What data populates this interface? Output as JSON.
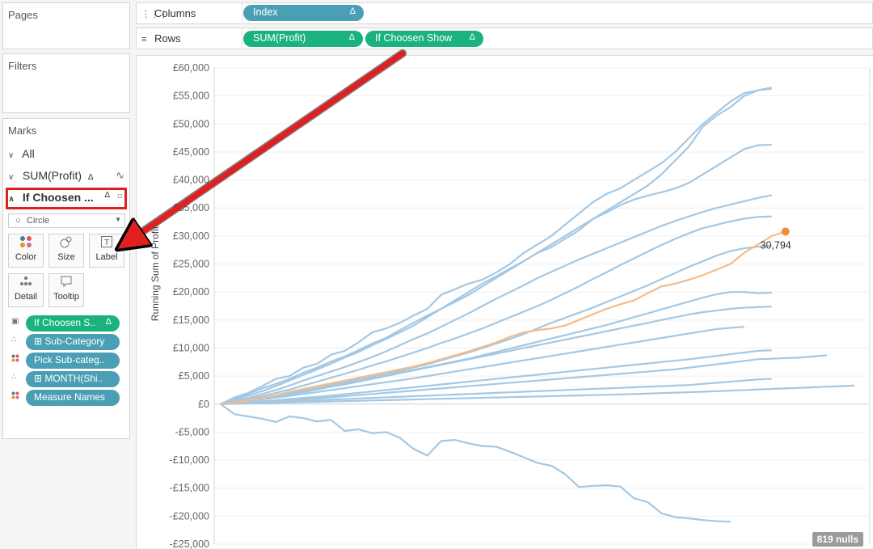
{
  "panels": {
    "pages": "Pages",
    "filters": "Filters",
    "marks": "Marks"
  },
  "shelves": {
    "columns_label": "Columns",
    "rows_label": "Rows",
    "columns_pills": [
      {
        "label": "Index",
        "color": "#4a9fb5"
      }
    ],
    "rows_pills": [
      {
        "label": "SUM(Profit)",
        "color": "#1ab37f"
      },
      {
        "label": "If Choosen Show",
        "color": "#1ab37f"
      }
    ]
  },
  "marks": {
    "all": "All",
    "sum_profit": "SUM(Profit)",
    "if_choosen": "If Choosen ...",
    "mark_type": "Circle",
    "buttons": {
      "color": "Color",
      "size": "Size",
      "label": "Label",
      "detail": "Detail",
      "tooltip": "Tooltip"
    },
    "fields": [
      {
        "label": "If Choosen S..",
        "icon": "label-icon",
        "color": "#1ab37f"
      },
      {
        "label": "⊞ Sub-Category",
        "icon": "detail-icon",
        "color": "#4a9fb5"
      },
      {
        "label": "Pick Sub-categ..",
        "icon": "color-icon",
        "color": "#4a9fb5"
      },
      {
        "label": "⊞ MONTH(Shi..",
        "icon": "detail-icon",
        "color": "#4a9fb5"
      },
      {
        "label": "Measure Names",
        "icon": "color-icon",
        "color": "#4a9fb5"
      }
    ]
  },
  "nulls_badge": "819 nulls",
  "chart_data": {
    "type": "line",
    "ylabel": "Running Sum of Profit",
    "xlabel": "",
    "ylim": [
      -25000,
      60000
    ],
    "xlim": [
      1,
      48
    ],
    "y_ticks": [
      {
        "value": 60000,
        "label": "£60,000"
      },
      {
        "value": 55000,
        "label": "£55,000"
      },
      {
        "value": 50000,
        "label": "£50,000"
      },
      {
        "value": 45000,
        "label": "£45,000"
      },
      {
        "value": 40000,
        "label": "£40,000"
      },
      {
        "value": 35000,
        "label": "£35,000"
      },
      {
        "value": 30000,
        "label": "£30,000"
      },
      {
        "value": 25000,
        "label": "£25,000"
      },
      {
        "value": 20000,
        "label": "£20,000"
      },
      {
        "value": 15000,
        "label": "£15,000"
      },
      {
        "value": 10000,
        "label": "£10,000"
      },
      {
        "value": 5000,
        "label": "£5,000"
      },
      {
        "value": 0,
        "label": "£0"
      },
      {
        "value": -5000,
        "label": "-£5,000"
      },
      {
        "value": -10000,
        "label": "-£10,000"
      },
      {
        "value": -15000,
        "label": "-£15,000"
      },
      {
        "value": -20000,
        "label": "-£20,000"
      },
      {
        "value": -25000,
        "label": "-£25,000"
      }
    ],
    "grid": true,
    "colors": {
      "series": "#a4c8e4",
      "highlight": "#f6bb87",
      "highlight_dot": "#ef8f3a"
    },
    "highlight_label": "30,794",
    "series": [
      {
        "values": [
          0,
          1200,
          2000,
          3200,
          4500,
          5000,
          6500,
          7200,
          8800,
          9500,
          11000,
          12800,
          13500,
          14500,
          15800,
          17000,
          19500,
          20500,
          21500,
          22200,
          23500,
          25000,
          27000,
          28500,
          30000,
          32000,
          34000,
          36000,
          37500,
          38500,
          40000,
          41500,
          43000,
          45000,
          47500,
          50000,
          52000,
          54000,
          55500,
          56000,
          56500
        ]
      },
      {
        "values": [
          0,
          900,
          1800,
          2800,
          3600,
          4500,
          5600,
          6500,
          7600,
          8500,
          9600,
          10800,
          11800,
          13200,
          14500,
          15800,
          17000,
          18200,
          19500,
          21000,
          22500,
          24000,
          25500,
          27000,
          28000,
          29500,
          31000,
          33000,
          34500,
          36000,
          37500,
          39000,
          41000,
          43500,
          46000,
          49500,
          51500,
          53000,
          55000,
          56000,
          56300
        ]
      },
      {
        "values": [
          0,
          700,
          1500,
          2300,
          3200,
          4200,
          5200,
          6200,
          7200,
          8300,
          9300,
          10500,
          11600,
          12800,
          14000,
          15500,
          17000,
          18500,
          20000,
          21500,
          22800,
          24200,
          25500,
          27000,
          28500,
          30000,
          31500,
          33000,
          34200,
          35500,
          36500,
          37200,
          37800,
          38500,
          39500,
          41000,
          42500,
          44000,
          45500,
          46200,
          46300
        ]
      },
      {
        "values": [
          0,
          500,
          1100,
          1800,
          2500,
          3300,
          4200,
          5000,
          5800,
          6600,
          7500,
          8400,
          9400,
          10500,
          11600,
          12600,
          13800,
          15000,
          16200,
          17500,
          18800,
          20000,
          21200,
          22500,
          23600,
          24700,
          25800,
          26800,
          27800,
          28800,
          29800,
          30800,
          31800,
          32700,
          33500,
          34300,
          35000,
          35600,
          36200,
          36800,
          37300
        ]
      },
      {
        "values": [
          0,
          400,
          900,
          1400,
          2000,
          2600,
          3300,
          4000,
          4700,
          5400,
          6100,
          6900,
          7600,
          8400,
          9200,
          10000,
          10900,
          11700,
          12600,
          13500,
          14500,
          15500,
          16500,
          17500,
          18600,
          19800,
          21000,
          22300,
          23500,
          24800,
          26000,
          27200,
          28400,
          29500,
          30500,
          31400,
          32000,
          32600,
          33100,
          33400,
          33500
        ]
      },
      {
        "values": [
          0,
          300,
          700,
          1100,
          1500,
          1900,
          2400,
          2900,
          3400,
          3900,
          4400,
          4900,
          5400,
          5900,
          6500,
          7100,
          7800,
          8500,
          9200,
          10000,
          10800,
          11600,
          12500,
          13500,
          14500,
          15400,
          16300,
          17200,
          18200,
          19200,
          20200,
          21200,
          22300,
          23400,
          24500,
          25500,
          26500,
          27300,
          27800,
          28100,
          28300
        ]
      },
      {
        "values": [
          0,
          200,
          500,
          900,
          1300,
          1700,
          2100,
          2600,
          3100,
          3600,
          4100,
          4600,
          5100,
          5600,
          6100,
          6600,
          7100,
          7600,
          8100,
          8700,
          9300,
          9900,
          10500,
          11100,
          11700,
          12300,
          12900,
          13500,
          14100,
          14800,
          15500,
          16200,
          16900,
          17600,
          18300,
          19000,
          19600,
          20000,
          20000,
          19800,
          19900
        ]
      },
      {
        "values": [
          0,
          300,
          700,
          1100,
          1500,
          1900,
          2300,
          2700,
          3100,
          3500,
          4000,
          4500,
          5000,
          5500,
          6000,
          6500,
          7000,
          7500,
          8000,
          8500,
          9000,
          9500,
          10000,
          10500,
          11000,
          11500,
          12000,
          12500,
          13000,
          13500,
          14000,
          14500,
          15000,
          15500,
          16000,
          16400,
          16700,
          17000,
          17200,
          17300,
          17400
        ]
      },
      {
        "values": [
          0,
          250,
          550,
          850,
          1150,
          1450,
          1800,
          2150,
          2500,
          2850,
          3200,
          3550,
          3900,
          4250,
          4600,
          5000,
          5400,
          5800,
          6200,
          6600,
          7000,
          7400,
          7800,
          8200,
          8600,
          9000,
          9400,
          9800,
          10200,
          10600,
          11000,
          11400,
          11800,
          12200,
          12600,
          13000,
          13400,
          13600,
          13800
        ]
      },
      {
        "values": [
          0,
          150,
          300,
          500,
          700,
          900,
          1100,
          1300,
          1500,
          1750,
          2000,
          2250,
          2500,
          2750,
          3000,
          3250,
          3500,
          3750,
          4000,
          4250,
          4500,
          4750,
          5000,
          5250,
          5500,
          5750,
          6000,
          6250,
          6500,
          6750,
          7000,
          7250,
          7500,
          7750,
          8000,
          8300,
          8600,
          8900,
          9200,
          9500,
          9600
        ]
      },
      {
        "values": [
          0,
          120,
          250,
          400,
          550,
          700,
          850,
          1000,
          1200,
          1400,
          1600,
          1800,
          2000,
          2200,
          2400,
          2600,
          2800,
          3000,
          3200,
          3400,
          3600,
          3800,
          4000,
          4200,
          4400,
          4600,
          4800,
          5000,
          5200,
          5400,
          5600,
          5800,
          6000,
          6200,
          6500,
          6800,
          7100,
          7400,
          7700,
          8000,
          8100,
          8200,
          8300,
          8500,
          8700
        ]
      },
      {
        "values": [
          0,
          100,
          200,
          300,
          400,
          500,
          600,
          700,
          800,
          900,
          1000,
          1100,
          1200,
          1300,
          1400,
          1500,
          1600,
          1700,
          1800,
          1900,
          2000,
          2100,
          2200,
          2300,
          2400,
          2500,
          2600,
          2700,
          2800,
          2900,
          3000,
          3100,
          3200,
          3300,
          3400,
          3600,
          3800,
          4000,
          4200,
          4400,
          4500
        ]
      },
      {
        "values": [
          0,
          50,
          100,
          160,
          220,
          280,
          340,
          400,
          460,
          520,
          580,
          640,
          700,
          760,
          820,
          880,
          940,
          1000,
          1060,
          1120,
          1180,
          1240,
          1300,
          1360,
          1420,
          1480,
          1540,
          1600,
          1660,
          1720,
          1800,
          1880,
          1960,
          2040,
          2120,
          2200,
          2300,
          2400,
          2500,
          2600,
          2700,
          2800,
          2900,
          3000,
          3100,
          3200,
          3300
        ]
      },
      {
        "values": [
          0,
          -1800,
          -2200,
          -2600,
          -3200,
          -2200,
          -2500,
          -3100,
          -2800,
          -4800,
          -4500,
          -5200,
          -5000,
          -6000,
          -8000,
          -9200,
          -6600,
          -6400,
          -7000,
          -7500,
          -7600,
          -8500,
          -9500,
          -10500,
          -11000,
          -12500,
          -14800,
          -14600,
          -14500,
          -14700,
          -16800,
          -17500,
          -19500,
          -20200,
          -20400,
          -20700,
          -20900,
          -21000
        ]
      },
      {
        "highlight": true,
        "values": [
          0,
          300,
          700,
          1100,
          1600,
          2200,
          2700,
          3200,
          3700,
          4200,
          4700,
          5200,
          5700,
          6200,
          6700,
          7300,
          8000,
          8700,
          9400,
          10200,
          11000,
          12000,
          12800,
          13200,
          13500,
          14000,
          15000,
          16000,
          17000,
          17800,
          18500,
          19800,
          21000,
          21500,
          22200,
          23000,
          24000,
          25000,
          27000,
          28500,
          30000,
          30794
        ]
      }
    ]
  }
}
